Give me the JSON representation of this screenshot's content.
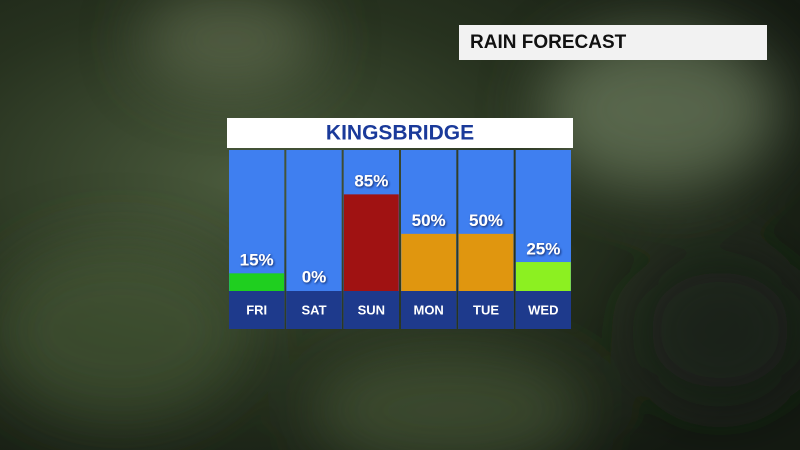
{
  "header": "RAIN FORECAST",
  "chart_data": {
    "type": "bar",
    "title": "KINGSBRIDGE",
    "categories": [
      "FRI",
      "SAT",
      "SUN",
      "MON",
      "TUE",
      "WED"
    ],
    "values": [
      15,
      0,
      85,
      50,
      50,
      25
    ],
    "value_labels": [
      "15%",
      "0%",
      "85%",
      "50%",
      "50%",
      "25%"
    ],
    "colors": [
      "#1fcf1f",
      "#ffffff",
      "#a01212",
      "#e0960f",
      "#e0960f",
      "#8cf021"
    ],
    "ylim": [
      0,
      125
    ]
  }
}
